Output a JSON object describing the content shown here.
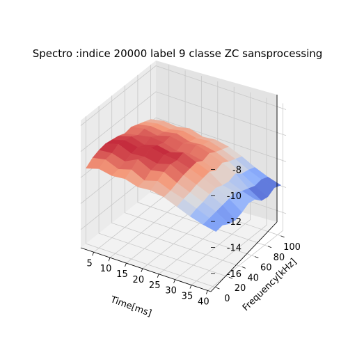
{
  "chart_data": {
    "type": "surface",
    "title": "Spectro :indice 20000 label 9 classe ZC sansprocessing",
    "xlabel": "Time[ms]",
    "ylabel": "Frequency[kHz]",
    "zlabel": "",
    "xlim": [
      1,
      41
    ],
    "ylim": [
      -8,
      108
    ],
    "zlim": [
      -17.4,
      -7.6
    ],
    "x_ticks": [
      "5",
      "10",
      "15",
      "20",
      "25",
      "30",
      "35",
      "40"
    ],
    "y_ticks": [
      "0",
      "20",
      "40",
      "60",
      "80",
      "100"
    ],
    "z_ticks": [
      "-8",
      "-10",
      "-12",
      "-14",
      "-16"
    ],
    "x_tick_values": [
      5,
      10,
      15,
      20,
      25,
      30,
      35,
      40
    ],
    "y_tick_values": [
      0,
      20,
      40,
      60,
      80,
      100
    ],
    "z_tick_values": [
      -8,
      -10,
      -12,
      -14,
      -16
    ],
    "colormap": "coolwarm",
    "colormap_stops": [
      "#3b4cc0",
      "#8db0fe",
      "#dddddd",
      "#f49a7b",
      "#b40426"
    ],
    "grid": true,
    "pane_color": "#f2f2f2",
    "time_ms": [
      1,
      5,
      9,
      13,
      17,
      21,
      25,
      29,
      33,
      37,
      41
    ],
    "frequency_khz": [
      0,
      10,
      20,
      30,
      40,
      50,
      60,
      70,
      80,
      90,
      100
    ],
    "magnitude": [
      [
        -11.6,
        -11.3,
        -11.5,
        -11.4,
        -11.7,
        -11.6,
        -11.8,
        -12.2,
        -12.6,
        -12.9,
        -13.1
      ],
      [
        -11.2,
        -11.0,
        -11.4,
        -11.1,
        -11.6,
        -11.3,
        -11.7,
        -12.0,
        -12.4,
        -12.8,
        -13.0
      ],
      [
        -11.0,
        -10.9,
        -11.2,
        -10.7,
        -11.2,
        -11.0,
        -11.5,
        -11.9,
        -12.3,
        -12.7,
        -13.3
      ],
      [
        -10.9,
        -10.6,
        -11.0,
        -10.9,
        -11.1,
        -10.8,
        -11.3,
        -11.7,
        -12.1,
        -12.6,
        -13.4
      ],
      [
        -11.0,
        -10.7,
        -10.9,
        -10.6,
        -10.8,
        -10.9,
        -11.2,
        -11.6,
        -12.0,
        -12.5,
        -13.2
      ],
      [
        -11.1,
        -10.8,
        -11.1,
        -10.8,
        -11.0,
        -10.7,
        -11.1,
        -11.5,
        -12.2,
        -12.4,
        -12.9
      ],
      [
        -11.3,
        -11.1,
        -10.9,
        -11.0,
        -11.3,
        -11.2,
        -11.4,
        -11.8,
        -12.3,
        -12.7,
        -13.0
      ],
      [
        -11.2,
        -11.0,
        -11.2,
        -10.9,
        -11.1,
        -10.9,
        -11.2,
        -11.6,
        -12.1,
        -12.9,
        -13.5
      ],
      [
        -11.4,
        -11.2,
        -11.3,
        -11.1,
        -11.4,
        -11.3,
        -11.5,
        -11.9,
        -12.5,
        -13.1,
        -13.6
      ],
      [
        -11.6,
        -11.4,
        -11.5,
        -11.3,
        -11.5,
        -11.4,
        -11.7,
        -12.1,
        -12.6,
        -13.0,
        -13.3
      ],
      [
        -11.8,
        -11.6,
        -11.7,
        -11.5,
        -11.8,
        -11.7,
        -11.9,
        -12.3,
        -12.8,
        -13.2,
        -13.5
      ]
    ]
  }
}
